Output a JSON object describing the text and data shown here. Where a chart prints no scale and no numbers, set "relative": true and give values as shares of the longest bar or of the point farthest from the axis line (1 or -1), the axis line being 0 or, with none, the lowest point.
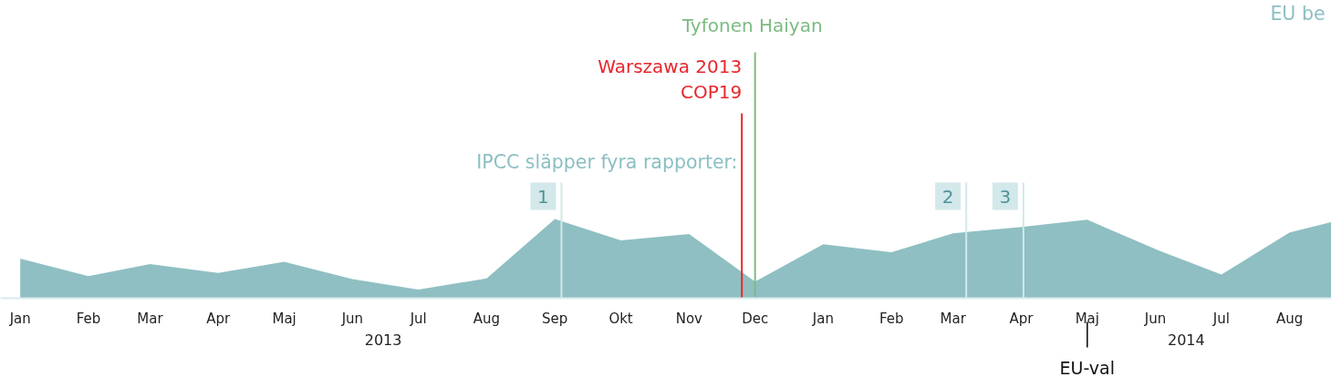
{
  "chart_data": {
    "type": "area",
    "relative": true,
    "x": [
      "2013-01",
      "2013-02",
      "2013-03",
      "2013-04",
      "2013-05",
      "2013-06",
      "2013-07",
      "2013-08",
      "2013-09",
      "2013-10",
      "2013-11",
      "2013-12",
      "2014-01",
      "2014-02",
      "2014-03",
      "2014-04",
      "2014-05",
      "2014-06",
      "2014-07",
      "2014-08",
      "2014-08-20"
    ],
    "series": [
      {
        "color": "#8fbfc2",
        "values": [
          0.5,
          0.28,
          0.43,
          0.32,
          0.46,
          0.24,
          0.11,
          0.25,
          1,
          0.73,
          0.81,
          0.21,
          0.68,
          0.58,
          0.82,
          0.9,
          0.99,
          0.62,
          0.3,
          0.83,
          0.96
        ]
      }
    ],
    "xlim": [
      "2012-12-23",
      "2014-08-20"
    ],
    "xticks": [
      {
        "value": "2013-01",
        "label": "Jan"
      },
      {
        "value": "2013-02",
        "label": "Feb"
      },
      {
        "value": "2013-03",
        "label": "Mar"
      },
      {
        "value": "2013-04",
        "label": "Apr"
      },
      {
        "value": "2013-05",
        "label": "Maj"
      },
      {
        "value": "2013-06",
        "label": "Jun"
      },
      {
        "value": "2013-07",
        "label": "Jul"
      },
      {
        "value": "2013-08",
        "label": "Aug"
      },
      {
        "value": "2013-09",
        "label": "Sep"
      },
      {
        "value": "2013-10",
        "label": "Okt"
      },
      {
        "value": "2013-11",
        "label": "Nov"
      },
      {
        "value": "2013-12",
        "label": "Dec"
      },
      {
        "value": "2014-01",
        "label": "Jan"
      },
      {
        "value": "2014-02",
        "label": "Feb"
      },
      {
        "value": "2014-03",
        "label": "Mar"
      },
      {
        "value": "2014-04",
        "label": "Apr"
      },
      {
        "value": "2014-05",
        "label": "Maj"
      },
      {
        "value": "2014-06",
        "label": "Jun"
      },
      {
        "value": "2014-07",
        "label": "Jul"
      },
      {
        "value": "2014-08",
        "label": "Aug"
      }
    ],
    "x2lim": [
      "2012-12-23",
      "2014-08-20"
    ],
    "x2ticks": [
      {
        "value": "2013-06-15",
        "label": "2013"
      },
      {
        "value": "2014-06-15",
        "label": "2014"
      }
    ],
    "ref_lines": [
      {
        "axis": "x",
        "value": "2013-09-04",
        "label": "1",
        "color": "#d3e8ea"
      },
      {
        "axis": "x",
        "value": "2013-11-25",
        "label": "Warszawa 2013\nCOP19",
        "color": "#e8262b"
      },
      {
        "axis": "x",
        "value": "2013-12-01",
        "label": "Tyfonen Haiyan",
        "color": "#7dbb84"
      },
      {
        "axis": "x",
        "value": "2014-03-07",
        "label": "2",
        "color": "#d3e8ea"
      },
      {
        "axis": "x",
        "value": "2014-04-02",
        "label": "3",
        "color": "#d3e8ea"
      }
    ],
    "annotations": [
      "IPCC släpper fyra rapporter:",
      {
        "text": "EU-val",
        "x": "2014-05"
      },
      "EU be"
    ],
    "grid": false
  }
}
